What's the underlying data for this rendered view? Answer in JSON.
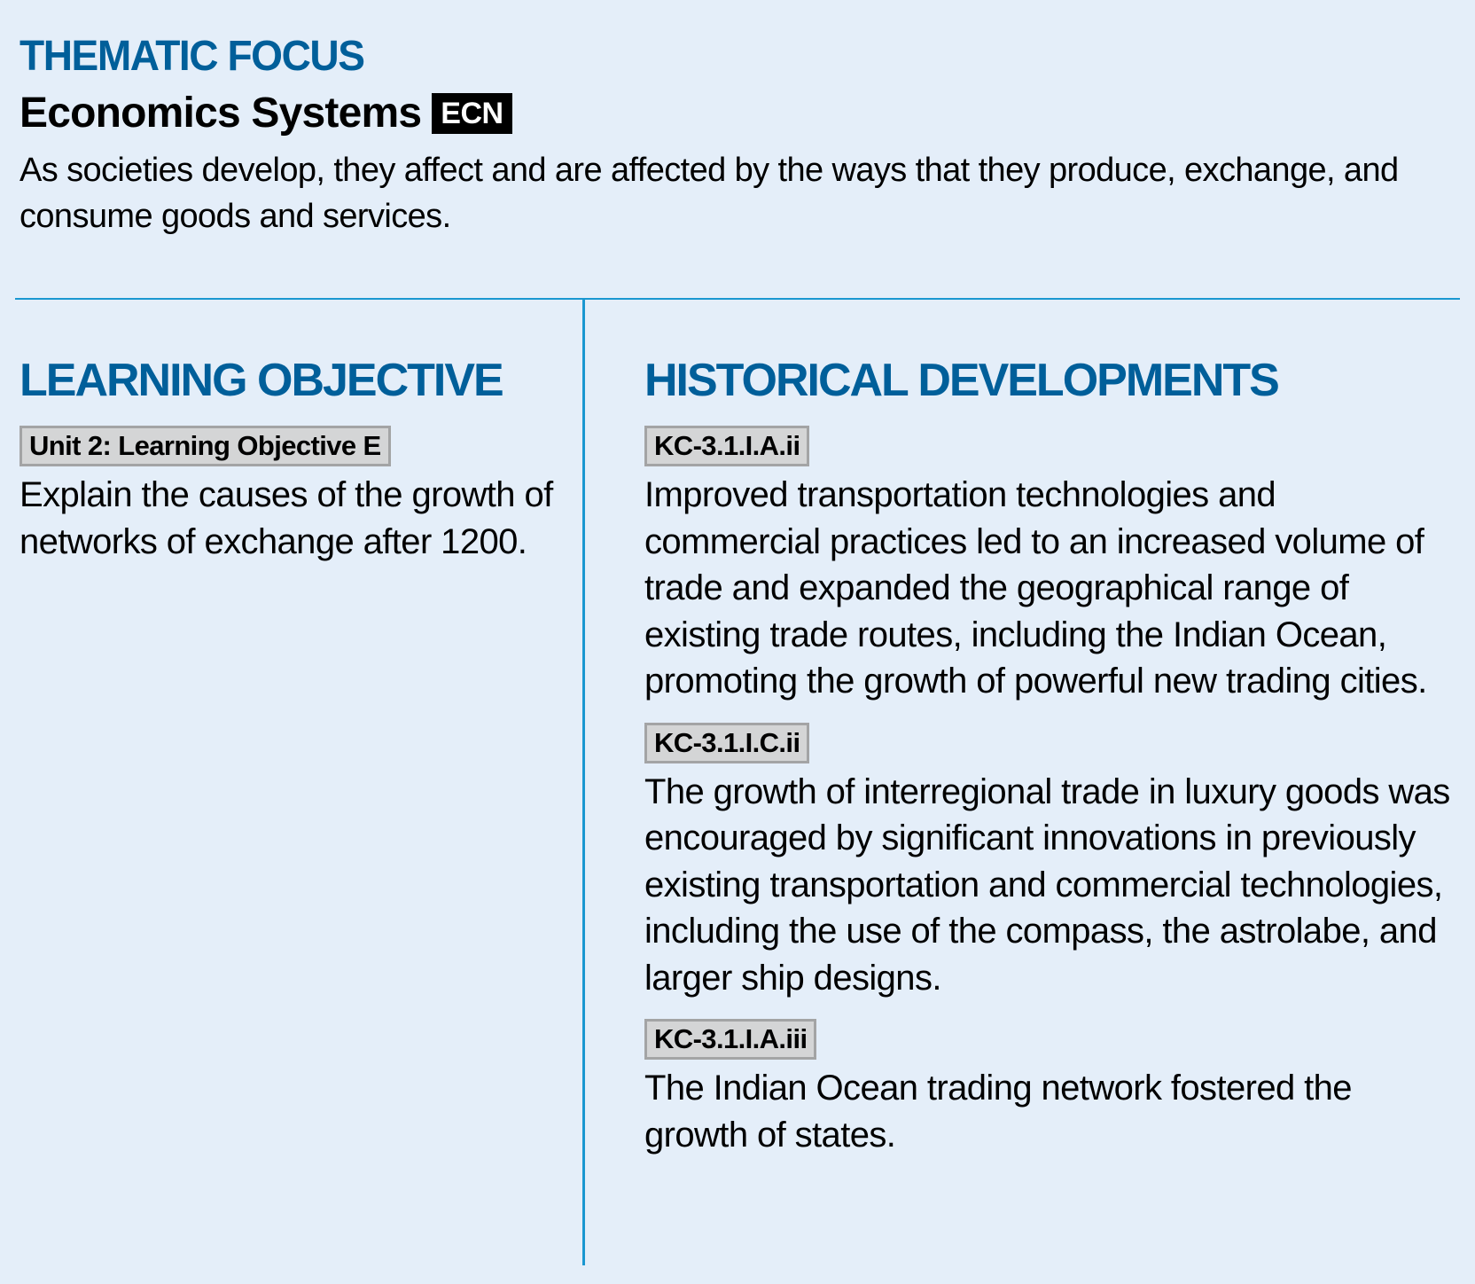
{
  "thematic_focus": {
    "kicker": "THEMATIC FOCUS",
    "title": "Economics Systems",
    "code": "ECN",
    "description": "As societies develop, they affect and are affected by the ways that they produce, exchange, and consume goods and services."
  },
  "learning_objective": {
    "heading": "LEARNING OBJECTIVE",
    "tag": "Unit 2: Learning Objective E",
    "text": "Explain the causes of the growth of networks of exchange after 1200."
  },
  "historical_developments": {
    "heading": "HISTORICAL DEVELOPMENTS",
    "items": [
      {
        "tag": "KC-3.1.I.A.ii",
        "text": "Improved transportation technologies and commercial practices led to an increased volume of trade and expanded the geographical range of existing trade routes, including the Indian Ocean, promoting the growth of powerful new trading cities."
      },
      {
        "tag": "KC-3.1.I.C.ii",
        "text": "The growth of interregional trade in luxury goods was encouraged by significant innovations in previously existing transportation and commercial technologies, including the use of the compass, the astrolabe, and larger ship designs."
      },
      {
        "tag": "KC-3.1.I.A.iii",
        "text": "The Indian Ocean trading network fostered the growth of states."
      }
    ]
  },
  "colors": {
    "background": "#e4eef9",
    "heading_blue": "#005f9a",
    "rule_blue": "#1a97d1",
    "tag_fill": "#d4d5d6",
    "tag_border": "#a3a4a5",
    "code_badge": "#000000"
  }
}
